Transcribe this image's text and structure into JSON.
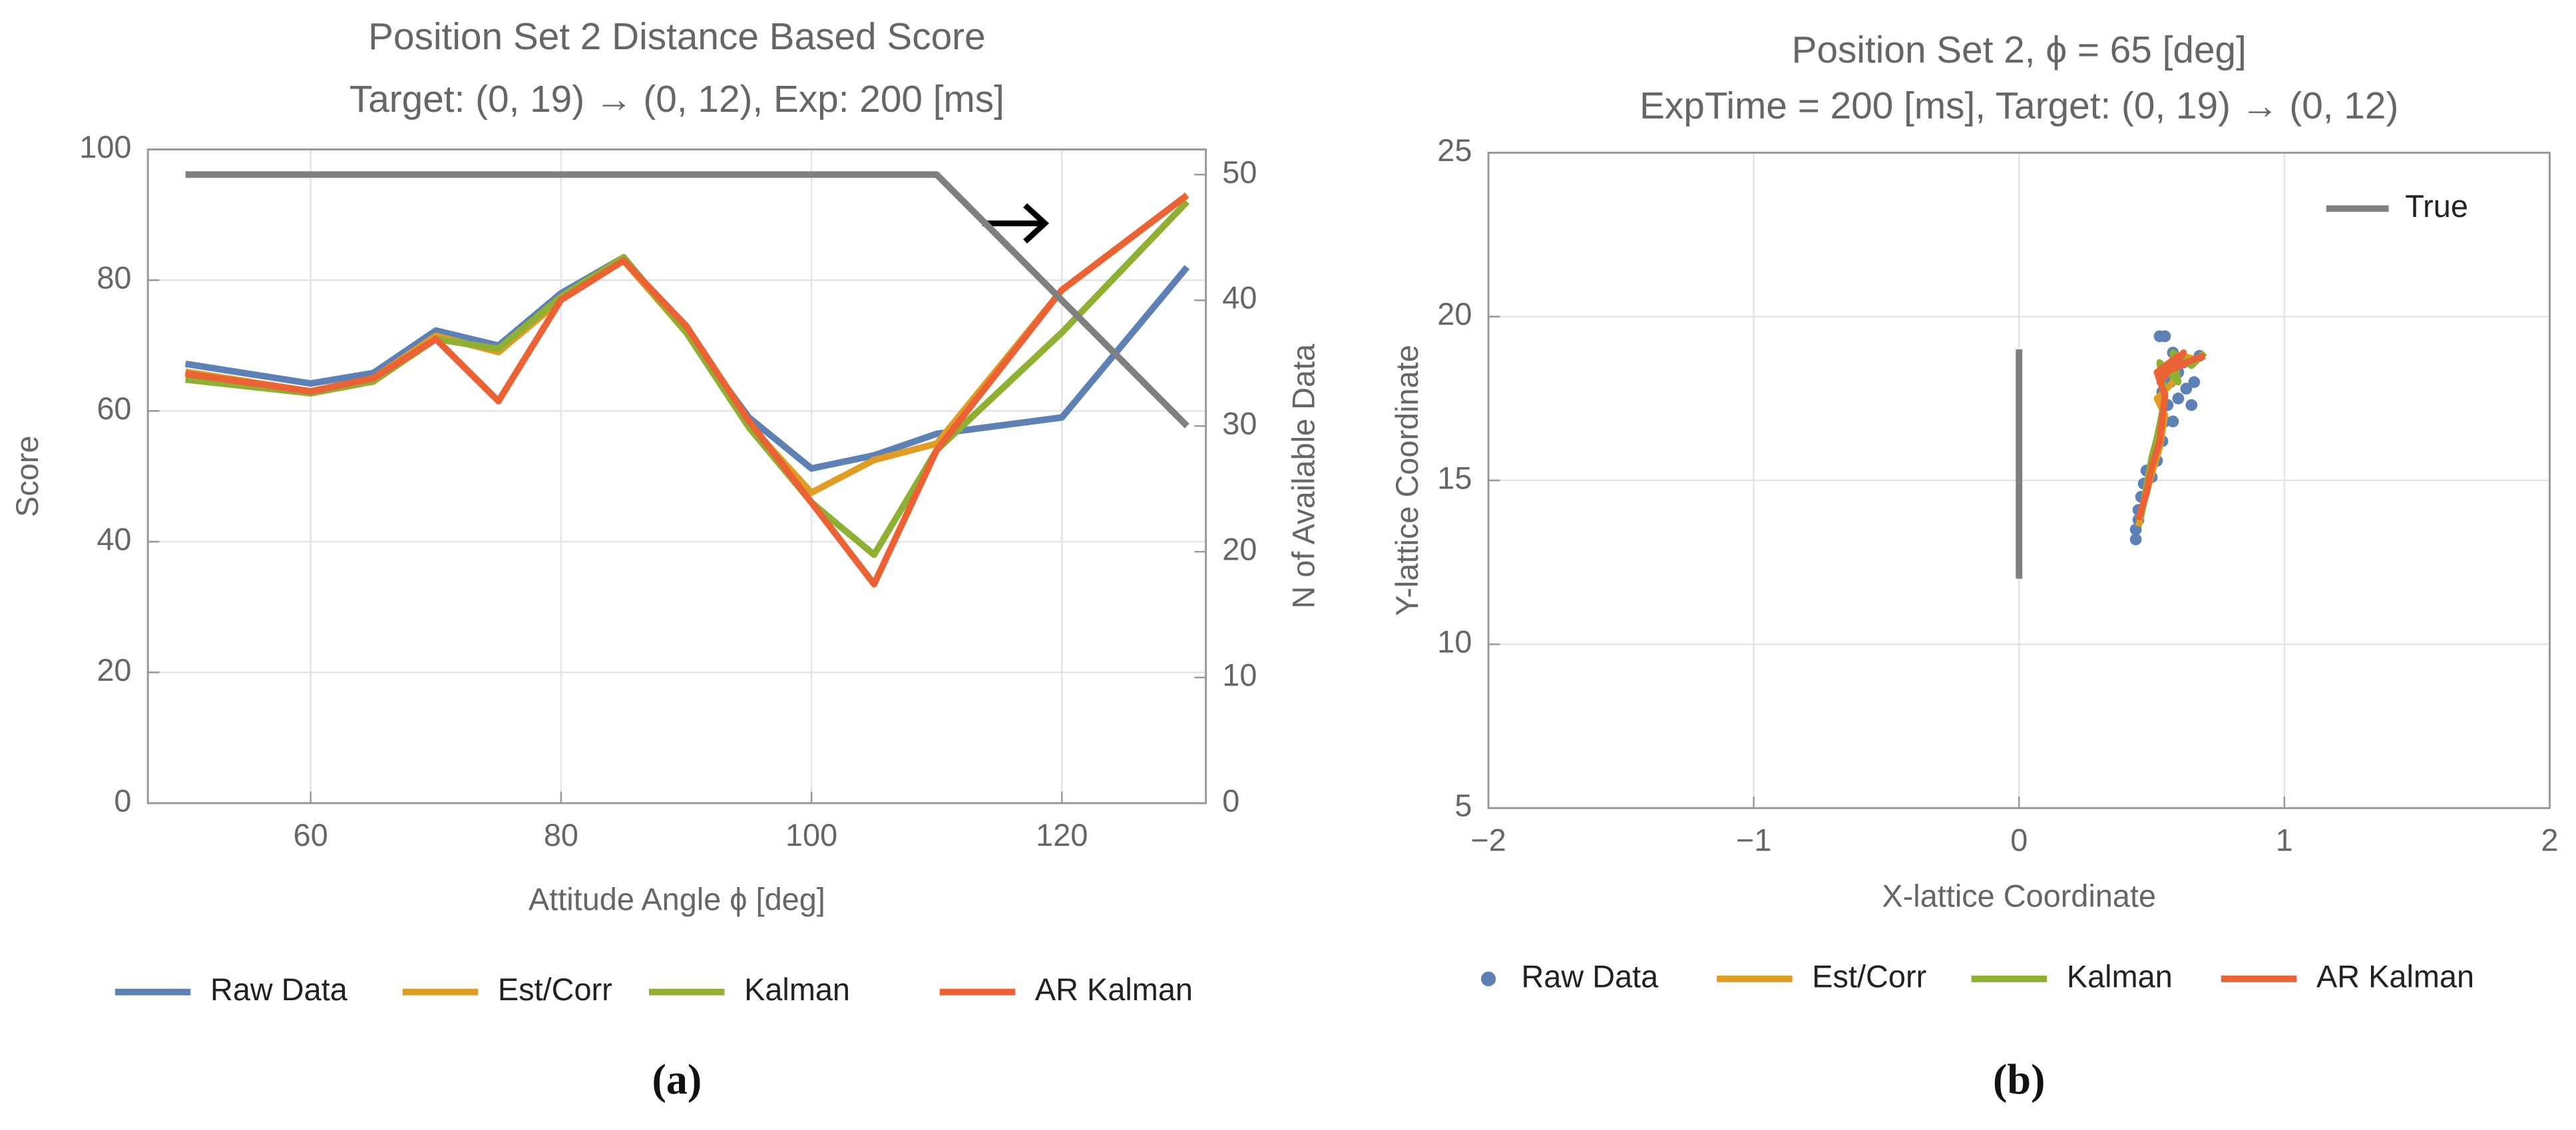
{
  "chart_data": [
    {
      "type": "line",
      "title": "Position Set 2 Distance Based Score",
      "subtitle": "Target: (0, 19) → (0, 12), Exp: 200 [ms]",
      "xlabel": "Attitude Angle ϕ [deg]",
      "ylabel": "Score",
      "y2label": "N of Available Data",
      "caption": "(a)",
      "x": [
        50,
        60,
        65,
        70,
        75,
        80,
        85,
        90,
        95,
        100,
        105,
        110,
        120,
        130
      ],
      "xlim": [
        47,
        131.5
      ],
      "xticks": [
        60,
        80,
        100,
        120
      ],
      "ylim": [
        0,
        100
      ],
      "yticks": [
        0,
        20,
        40,
        60,
        80,
        100
      ],
      "y2lim": [
        0,
        52
      ],
      "y2ticks": [
        0,
        10,
        20,
        30,
        40,
        50
      ],
      "grid": true,
      "legend": "bottom",
      "series": [
        {
          "name": "Raw Data",
          "color": "#5e81b5",
          "values": [
            67.2,
            64.2,
            65.8,
            72.3,
            70,
            78,
            83.5,
            72,
            59,
            51.2,
            53.2,
            56.5,
            59,
            82
          ]
        },
        {
          "name": "Est/Corr",
          "color": "#e19c24",
          "values": [
            66,
            63,
            65,
            71.5,
            69,
            77,
            83,
            72,
            58,
            47.5,
            52.5,
            55,
            78.5,
            93
          ]
        },
        {
          "name": "Kalman",
          "color": "#8fb032",
          "values": [
            64.8,
            62.7,
            64.5,
            71,
            69.5,
            77.5,
            83.5,
            72,
            57.5,
            46,
            38,
            54,
            72,
            92
          ]
        },
        {
          "name": "AR Kalman",
          "color": "#eb6235",
          "values": [
            65.7,
            63,
            65,
            71,
            61.5,
            77,
            83,
            73,
            58.5,
            46,
            33.5,
            54,
            78.5,
            93
          ]
        },
        {
          "color": "#808080",
          "axis": "y2",
          "values": [
            50,
            50,
            50,
            50,
            50,
            50,
            50,
            50,
            50,
            50,
            50,
            50,
            40,
            30
          ]
        }
      ]
    },
    {
      "type": "scatter",
      "title": "Position Set 2, ϕ = 65 [deg]",
      "subtitle": "ExpTime = 200 [ms], Target: (0, 19) → (0, 12)",
      "xlabel": "X-lattice Coordinate",
      "ylabel": "Y-lattice Coordinate",
      "caption": "(b)",
      "xlim": [
        -2,
        2
      ],
      "xticks": [
        {
          "value": -2,
          "label": "−2"
        },
        {
          "value": -1,
          "label": "−1"
        },
        0,
        1,
        2
      ],
      "ylim": [
        5,
        25
      ],
      "yticks": [
        5,
        10,
        15,
        20,
        25
      ],
      "grid": true,
      "legend": "bottom",
      "series": [
        {
          "name": "Raw Data",
          "color": "#5e81b5",
          "type": "scatter",
          "x": [
            0.44,
            0.44,
            0.45,
            0.45,
            0.46,
            0.47,
            0.48,
            0.5,
            0.52,
            0.54,
            0.55,
            0.58,
            0.56,
            0.54,
            0.57,
            0.6,
            0.62,
            0.58,
            0.55,
            0.53,
            0.63,
            0.65,
            0.66,
            0.6,
            0.68
          ],
          "values": [
            13.2,
            13.5,
            13.8,
            14.1,
            14.5,
            14.9,
            15.3,
            15.1,
            15.6,
            16.2,
            16.8,
            16.8,
            17.3,
            17.7,
            18.0,
            18.3,
            18.6,
            18.9,
            19.4,
            19.4,
            17.8,
            17.3,
            18.0,
            17.5,
            18.8
          ]
        },
        {
          "name": "Est/Corr",
          "color": "#e19c24",
          "type": "line",
          "x": [
            0.45,
            0.47,
            0.5,
            0.53,
            0.55,
            0.52,
            0.58,
            0.6,
            0.55,
            0.62,
            0.66
          ],
          "values": [
            13.6,
            14.3,
            15.2,
            16.0,
            17.0,
            17.5,
            18.0,
            18.6,
            18.2,
            18.8,
            18.7
          ]
        },
        {
          "name": "Kalman",
          "color": "#8fb032",
          "type": "line",
          "x": [
            0.46,
            0.48,
            0.5,
            0.52,
            0.55,
            0.53,
            0.6,
            0.58,
            0.65,
            0.7
          ],
          "values": [
            13.9,
            14.8,
            15.7,
            16.3,
            17.5,
            18.6,
            18.0,
            18.9,
            18.5,
            18.9
          ]
        },
        {
          "name": "AR Kalman",
          "color": "#eb6235",
          "type": "line",
          "x": [
            0.45,
            0.48,
            0.5,
            0.53,
            0.55,
            0.52,
            0.6,
            0.53,
            0.62,
            0.58,
            0.66,
            0.7
          ],
          "values": [
            13.8,
            14.6,
            15.4,
            16.2,
            17.6,
            18.3,
            18.8,
            18.0,
            18.9,
            18.4,
            18.7,
            18.8
          ]
        },
        {
          "name": "True",
          "color": "#808080",
          "type": "line",
          "legend": "top right",
          "x": [
            0,
            0
          ],
          "values": [
            12,
            19
          ]
        }
      ]
    }
  ]
}
